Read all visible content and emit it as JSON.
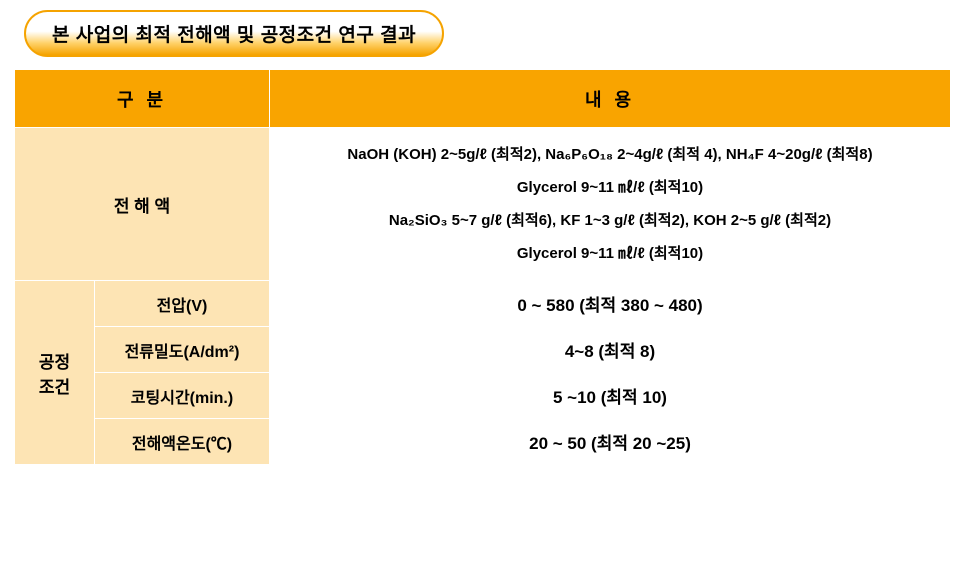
{
  "title": "본 사업의 최적 전해액 및 공정조건 연구 결과",
  "header": {
    "col1": "구 분",
    "col2": "내 용"
  },
  "electrolyte": {
    "label": "전 해 액",
    "line1": "NaOH (KOH) 2~5g/ℓ (최적2), Na₆P₆O₁₈ 2~4g/ℓ (최적 4), NH₄F 4~20g/ℓ (최적8)",
    "line2": "Glycerol 9~11 ㎖/ℓ (최적10)",
    "line3": "Na₂SiO₃ 5~7 g/ℓ (최적6), KF 1~3 g/ℓ (최적2), KOH 2~5 g/ℓ (최적2)",
    "line4": "Glycerol 9~11 ㎖/ℓ (최적10)"
  },
  "process": {
    "grouplabel": "공정\n조건",
    "rows": [
      {
        "label": "전압(V)",
        "value": "0 ~ 580 (최적 380 ~ 480)"
      },
      {
        "label": "전류밀도(A/dm²)",
        "value": "4~8 (최적 8)"
      },
      {
        "label": "코팅시간(min.)",
        "value": "5 ~10 (최적 10)"
      },
      {
        "label": "전해액온도(℃)",
        "value": "20 ~ 50 (최적 20 ~25)"
      }
    ]
  },
  "colors": {
    "header_bg": "#f9a400",
    "rowlabel_bg": "#fde4b4",
    "border": "#ffffff",
    "text": "#000000",
    "pill_border": "#f5a300"
  }
}
